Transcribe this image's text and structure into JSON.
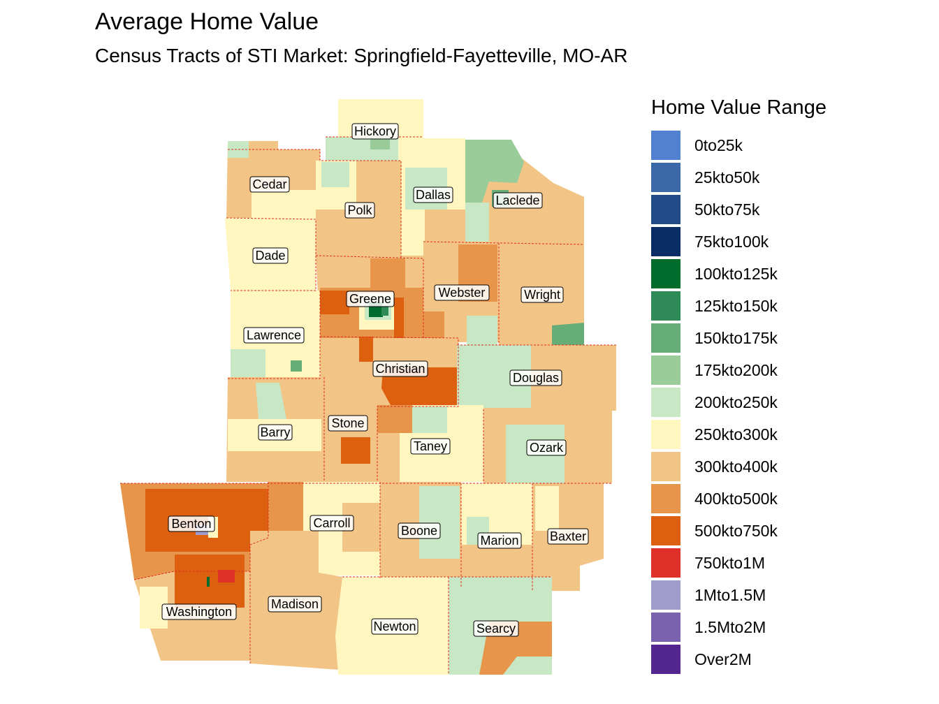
{
  "title": "Average Home Value",
  "subtitle": "Census Tracts of STI Market: Springfield-Fayetteville, MO-AR",
  "legend": {
    "title": "Home Value Range",
    "items": [
      {
        "label": "0to25k",
        "color": "#5281d0"
      },
      {
        "label": "25kto50k",
        "color": "#3a68a8"
      },
      {
        "label": "50kto75k",
        "color": "#214c88"
      },
      {
        "label": "75kto100k",
        "color": "#0b2d66"
      },
      {
        "label": "100kto125k",
        "color": "#006d2c"
      },
      {
        "label": "125kto150k",
        "color": "#2e8b57"
      },
      {
        "label": "150kto175k",
        "color": "#67ad78"
      },
      {
        "label": "175kto200k",
        "color": "#99cc99"
      },
      {
        "label": "200kto250k",
        "color": "#c8e7c4"
      },
      {
        "label": "250kto300k",
        "color": "#fff6c0"
      },
      {
        "label": "300kto400k",
        "color": "#f2c486"
      },
      {
        "label": "400kto500k",
        "color": "#e7954a"
      },
      {
        "label": "500kto750k",
        "color": "#dc6010"
      },
      {
        "label": "750kto1M",
        "color": "#e0302a"
      },
      {
        "label": "1Mto1.5M",
        "color": "#a09ccb"
      },
      {
        "label": "1.5Mto2M",
        "color": "#7b62ae"
      },
      {
        "label": "Over2M",
        "color": "#542790"
      }
    ]
  },
  "counties": [
    {
      "name": "Hickory"
    },
    {
      "name": "Cedar"
    },
    {
      "name": "Dallas"
    },
    {
      "name": "Laclede"
    },
    {
      "name": "Polk"
    },
    {
      "name": "Dade"
    },
    {
      "name": "Greene"
    },
    {
      "name": "Webster"
    },
    {
      "name": "Wright"
    },
    {
      "name": "Lawrence"
    },
    {
      "name": "Christian"
    },
    {
      "name": "Douglas"
    },
    {
      "name": "Barry"
    },
    {
      "name": "Stone"
    },
    {
      "name": "Taney"
    },
    {
      "name": "Ozark"
    },
    {
      "name": "Benton"
    },
    {
      "name": "Carroll"
    },
    {
      "name": "Boone"
    },
    {
      "name": "Marion"
    },
    {
      "name": "Baxter"
    },
    {
      "name": "Washington"
    },
    {
      "name": "Madison"
    },
    {
      "name": "Newton"
    },
    {
      "name": "Searcy"
    }
  ]
}
